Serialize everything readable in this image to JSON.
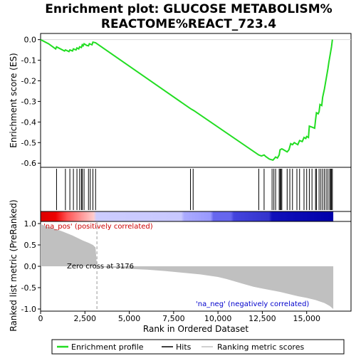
{
  "chart_data": {
    "type": "line",
    "title_line1": "Enrichment plot: GLUCOSE METABOLISM%",
    "title_line2": "REACTOME%REACT_723.4",
    "xlabel": "Rank in Ordered Dataset",
    "ylabel_top": "Enrichment score (ES)",
    "ylabel_bottom": "Ranked list metric (PreRanked)",
    "xlim": [
      0,
      17500
    ],
    "es_ylim": [
      -0.62,
      0.03
    ],
    "metric_ylim": [
      -1.05,
      1.05
    ],
    "x_ticks": [
      0,
      2500,
      5000,
      7500,
      10000,
      12500,
      15000
    ],
    "x_tick_labels": [
      "0",
      "2,500",
      "5,000",
      "7,500",
      "10,000",
      "12,500",
      "15,000"
    ],
    "es_ticks": [
      0.0,
      -0.1,
      -0.2,
      -0.3,
      -0.4,
      -0.5,
      -0.6
    ],
    "es_tick_labels": [
      "0.0",
      "-0.1",
      "-0.2",
      "-0.3",
      "-0.4",
      "-0.5",
      "-0.6"
    ],
    "metric_ticks": [
      1.0,
      0.5,
      0.0,
      -0.5,
      -1.0
    ],
    "metric_tick_labels": [
      "1.0",
      "0.5",
      "0.0",
      "-0.5",
      "-1.0"
    ],
    "annotations": {
      "pos_label": "'na_pos' (positively correlated)",
      "neg_label": "'na_neg' (negatively correlated)",
      "zero_cross": "Zero cross at 3176"
    },
    "zero_cross_rank": 3176,
    "total_ranks": 16500,
    "legend": {
      "enrichment_profile": "Enrichment profile",
      "hits": "Hits",
      "ranking_metric": "Ranking metric scores"
    },
    "colors": {
      "profile": "#22dd22",
      "hits": "#000000",
      "metric_fill": "#c0c0c0",
      "pos_text": "#cc0000",
      "neg_text": "#0000cc"
    },
    "es_series": [
      [
        0,
        0.0
      ],
      [
        450,
        -0.02
      ],
      [
        850,
        -0.045
      ],
      [
        900,
        -0.035
      ],
      [
        1350,
        -0.055
      ],
      [
        1400,
        -0.05
      ],
      [
        1600,
        -0.058
      ],
      [
        1650,
        -0.05
      ],
      [
        1800,
        -0.055
      ],
      [
        1850,
        -0.045
      ],
      [
        2000,
        -0.05
      ],
      [
        2050,
        -0.04
      ],
      [
        2150,
        -0.045
      ],
      [
        2200,
        -0.035
      ],
      [
        2300,
        -0.038
      ],
      [
        2350,
        -0.025
      ],
      [
        2400,
        -0.03
      ],
      [
        2450,
        -0.02
      ],
      [
        2600,
        -0.028
      ],
      [
        2700,
        -0.03
      ],
      [
        2750,
        -0.02
      ],
      [
        2900,
        -0.025
      ],
      [
        2950,
        -0.012
      ],
      [
        3100,
        -0.015
      ],
      [
        8450,
        -0.335
      ],
      [
        8650,
        -0.345
      ],
      [
        12300,
        -0.56
      ],
      [
        12450,
        -0.565
      ],
      [
        12600,
        -0.56
      ],
      [
        12700,
        -0.568
      ],
      [
        12900,
        -0.58
      ],
      [
        13100,
        -0.585
      ],
      [
        13250,
        -0.57
      ],
      [
        13350,
        -0.575
      ],
      [
        13450,
        -0.56
      ],
      [
        13500,
        -0.535
      ],
      [
        13600,
        -0.53
      ],
      [
        13700,
        -0.535
      ],
      [
        13900,
        -0.545
      ],
      [
        14000,
        -0.535
      ],
      [
        14100,
        -0.505
      ],
      [
        14200,
        -0.51
      ],
      [
        14300,
        -0.5
      ],
      [
        14500,
        -0.51
      ],
      [
        14600,
        -0.49
      ],
      [
        14750,
        -0.495
      ],
      [
        14850,
        -0.475
      ],
      [
        14950,
        -0.48
      ],
      [
        15000,
        -0.47
      ],
      [
        15100,
        -0.475
      ],
      [
        15150,
        -0.42
      ],
      [
        15300,
        -0.425
      ],
      [
        15450,
        -0.43
      ],
      [
        15500,
        -0.39
      ],
      [
        15550,
        -0.355
      ],
      [
        15650,
        -0.36
      ],
      [
        15700,
        -0.35
      ],
      [
        15750,
        -0.315
      ],
      [
        15850,
        -0.32
      ],
      [
        15900,
        -0.28
      ],
      [
        15950,
        -0.26
      ],
      [
        16000,
        -0.24
      ],
      [
        16050,
        -0.215
      ],
      [
        16100,
        -0.19
      ],
      [
        16150,
        -0.165
      ],
      [
        16200,
        -0.14
      ],
      [
        16250,
        -0.11
      ],
      [
        16300,
        -0.085
      ],
      [
        16350,
        -0.06
      ],
      [
        16400,
        -0.035
      ],
      [
        16450,
        0.0
      ]
    ],
    "hit_ranks": [
      900,
      1400,
      1650,
      1850,
      2050,
      2200,
      2300,
      2350,
      2450,
      2700,
      2800,
      2950,
      3100,
      8450,
      8600,
      12300,
      12600,
      13050,
      13150,
      13250,
      13450,
      13500,
      13550,
      13600,
      13900,
      14050,
      14200,
      14450,
      14600,
      14850,
      15000,
      15150,
      15300,
      15500,
      15550,
      15700,
      15800,
      15900,
      16000,
      16100,
      16200,
      16300,
      16350,
      16400,
      16450
    ],
    "metric_series": [
      [
        0,
        1.0
      ],
      [
        100,
        0.97
      ],
      [
        300,
        0.94
      ],
      [
        600,
        0.9
      ],
      [
        900,
        0.86
      ],
      [
        1200,
        0.82
      ],
      [
        1500,
        0.77
      ],
      [
        1800,
        0.72
      ],
      [
        2100,
        0.66
      ],
      [
        2400,
        0.6
      ],
      [
        2700,
        0.55
      ],
      [
        2950,
        0.5
      ],
      [
        3100,
        0.44
      ],
      [
        3176,
        0.0
      ],
      [
        3500,
        -0.02
      ],
      [
        4500,
        -0.04
      ],
      [
        5000,
        -0.06
      ],
      [
        6000,
        -0.08
      ],
      [
        7000,
        -0.11
      ],
      [
        8000,
        -0.15
      ],
      [
        9000,
        -0.19
      ],
      [
        10000,
        -0.25
      ],
      [
        10500,
        -0.3
      ],
      [
        11000,
        -0.36
      ],
      [
        11500,
        -0.42
      ],
      [
        12000,
        -0.48
      ],
      [
        12500,
        -0.52
      ],
      [
        13000,
        -0.56
      ],
      [
        13500,
        -0.6
      ],
      [
        14000,
        -0.65
      ],
      [
        14500,
        -0.7
      ],
      [
        15000,
        -0.74
      ],
      [
        15500,
        -0.79
      ],
      [
        16000,
        -0.86
      ],
      [
        16300,
        -0.93
      ],
      [
        16500,
        -1.0
      ]
    ]
  }
}
